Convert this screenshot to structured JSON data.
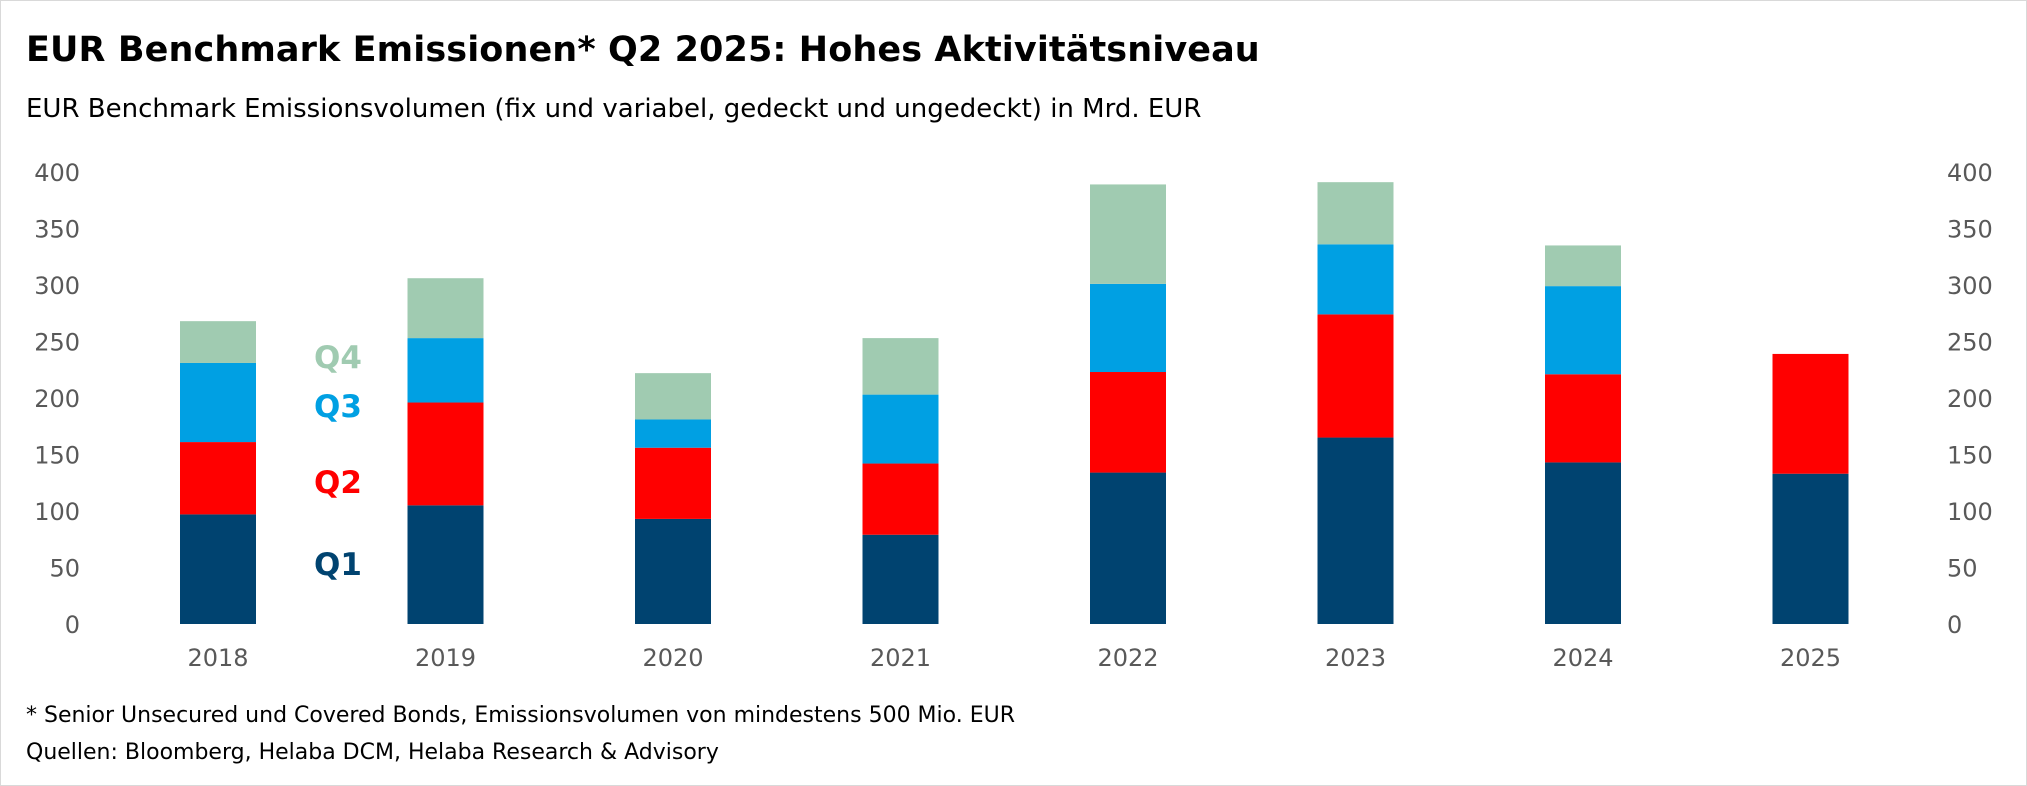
{
  "chart_data": {
    "type": "bar",
    "stacked": true,
    "title": "EUR Benchmark Emissionen* Q2 2025: Hohes Aktivitätsniveau",
    "subtitle": "EUR Benchmark Emissionsvolumen (fix und variabel, gedeckt und ungedeckt) in Mrd. EUR",
    "xlabel": "",
    "ylabel": "",
    "ylim": [
      0,
      400
    ],
    "yticks": [
      "0",
      "50",
      "100",
      "150",
      "200",
      "250",
      "300",
      "350",
      "400"
    ],
    "categories": [
      "2018",
      "2019",
      "2020",
      "2021",
      "2022",
      "2023",
      "2024",
      "2025"
    ],
    "series": [
      {
        "name": "Q1",
        "color": "#004370",
        "values": [
          97,
          105,
          93,
          79,
          134,
          165,
          143,
          133
        ]
      },
      {
        "name": "Q2",
        "color": "#ff0000",
        "values": [
          64,
          91,
          63,
          63,
          89,
          109,
          78,
          106
        ]
      },
      {
        "name": "Q3",
        "color": "#00a0e3",
        "values": [
          70,
          57,
          25,
          61,
          78,
          62,
          78,
          null
        ]
      },
      {
        "name": "Q4",
        "color": "#a0cbb1",
        "values": [
          37,
          53,
          41,
          50,
          88,
          55,
          36,
          null
        ]
      }
    ],
    "legend": "inline-left"
  },
  "footnote": "* Senior Unsecured und Covered Bonds, Emissionsvolumen von mindestens 500 Mio. EUR",
  "sources": "Quellen: Bloomberg, Helaba DCM, Helaba Research & Advisory"
}
